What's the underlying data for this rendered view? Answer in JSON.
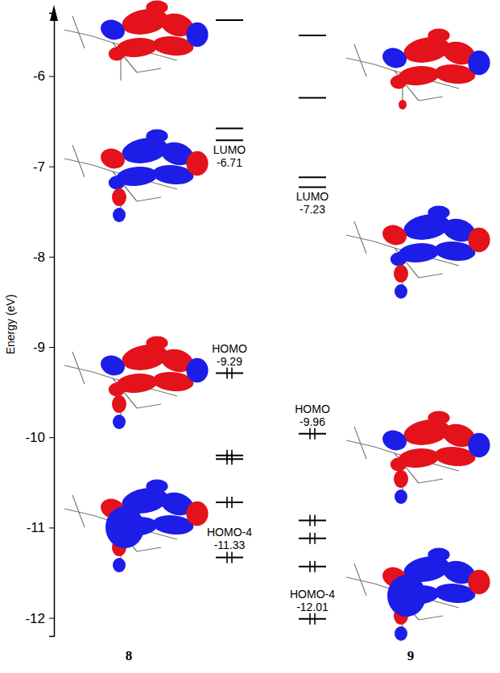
{
  "chart_data": {
    "type": "energy_level",
    "y_label": "Energy (eV)",
    "ylim": [
      -12.2,
      -5.3
    ],
    "yticks": [
      -12,
      -11,
      -10,
      -9,
      -8,
      -7,
      -6
    ],
    "series": [
      {
        "name": "8",
        "values": [
          -5.38,
          -6.58,
          -6.71,
          -9.29,
          -10.2,
          -10.24,
          -10.72,
          -11.33
        ],
        "occupancy": [
          0,
          0,
          0,
          2,
          2,
          2,
          2,
          2
        ],
        "level_labels": [
          null,
          null,
          "LUMO",
          "HOMO",
          null,
          null,
          null,
          "HOMO-4"
        ]
      },
      {
        "name": "9",
        "values": [
          -5.55,
          -6.24,
          -7.12,
          -7.23,
          -9.96,
          -10.92,
          -11.12,
          -11.43,
          -12.01
        ],
        "occupancy": [
          0,
          0,
          0,
          0,
          2,
          2,
          2,
          2,
          2
        ],
        "level_labels": [
          null,
          null,
          null,
          "LUMO",
          "HOMO",
          null,
          null,
          null,
          "HOMO-4"
        ]
      }
    ]
  }
}
